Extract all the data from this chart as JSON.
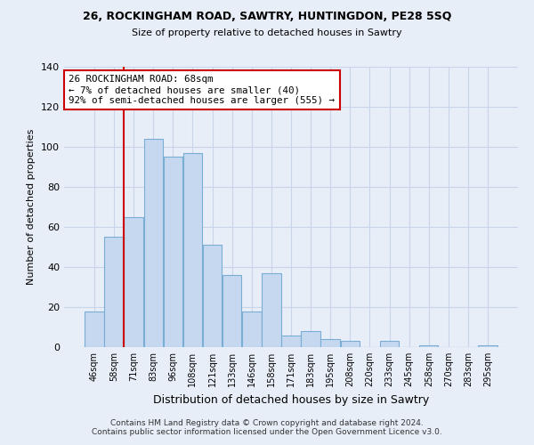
{
  "title": "26, ROCKINGHAM ROAD, SAWTRY, HUNTINGDON, PE28 5SQ",
  "subtitle": "Size of property relative to detached houses in Sawtry",
  "xlabel": "Distribution of detached houses by size in Sawtry",
  "ylabel": "Number of detached properties",
  "bin_labels": [
    "46sqm",
    "58sqm",
    "71sqm",
    "83sqm",
    "96sqm",
    "108sqm",
    "121sqm",
    "133sqm",
    "146sqm",
    "158sqm",
    "171sqm",
    "183sqm",
    "195sqm",
    "208sqm",
    "220sqm",
    "233sqm",
    "245sqm",
    "258sqm",
    "270sqm",
    "283sqm",
    "295sqm"
  ],
  "bar_heights": [
    18,
    55,
    65,
    104,
    95,
    97,
    51,
    36,
    18,
    37,
    6,
    8,
    4,
    3,
    0,
    3,
    0,
    1,
    0,
    0,
    1
  ],
  "bar_color": "#c5d8f0",
  "bar_edge_color": "#7aadd4",
  "vline_color": "#cc0000",
  "annotation_line1": "26 ROCKINGHAM ROAD: 68sqm",
  "annotation_line2": "← 7% of detached houses are smaller (40)",
  "annotation_line3": "92% of semi-detached houses are larger (555) →",
  "annotation_box_color": "white",
  "annotation_box_edge": "#cc0000",
  "ylim": [
    0,
    140
  ],
  "yticks": [
    0,
    20,
    40,
    60,
    80,
    100,
    120,
    140
  ],
  "footer_text": "Contains HM Land Registry data © Crown copyright and database right 2024.\nContains public sector information licensed under the Open Government Licence v3.0.",
  "bg_color": "#e8eef8",
  "grid_color": "#c8d4e8"
}
